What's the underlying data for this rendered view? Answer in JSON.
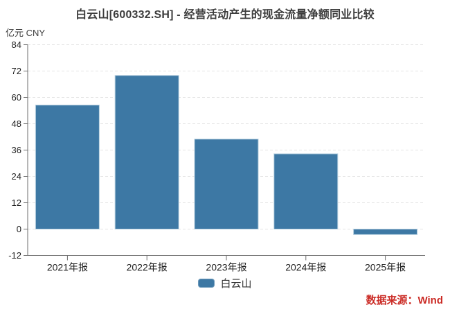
{
  "title": "白云山[600332.SH] - 经营活动产生的现金流量净额同业比较",
  "unit_label": "亿元 CNY",
  "source_label": "数据来源：Wind",
  "legend": [
    {
      "label": "白云山",
      "color": "#3d78a4"
    }
  ],
  "colors": {
    "title_text": "#3d3d3d",
    "bar_fill": "#3d78a4",
    "bar_stroke": "#b7cfdf",
    "axis_line": "#6e6e6e",
    "gridline": "#e4e4e4",
    "tick_text": "#222222",
    "source_text": "#cb2c26"
  },
  "chart_data": {
    "type": "bar",
    "title": "白云山[600332.SH] - 经营活动产生的现金流量净额同业比较",
    "xlabel": "",
    "ylabel": "亿元 CNY",
    "categories": [
      "2021年报",
      "2022年报",
      "2023年报",
      "2024年报",
      "2025年报"
    ],
    "series": [
      {
        "name": "白云山",
        "values": [
          56.5,
          70.0,
          41.0,
          34.3,
          -2.5
        ]
      }
    ],
    "ylim": [
      -12,
      84
    ],
    "yticks": [
      84,
      72,
      60,
      48,
      36,
      24,
      12,
      0,
      -12
    ],
    "grid": "horizontal-dashed",
    "legend_position": "bottom",
    "bar_color": "#3d78a4"
  }
}
